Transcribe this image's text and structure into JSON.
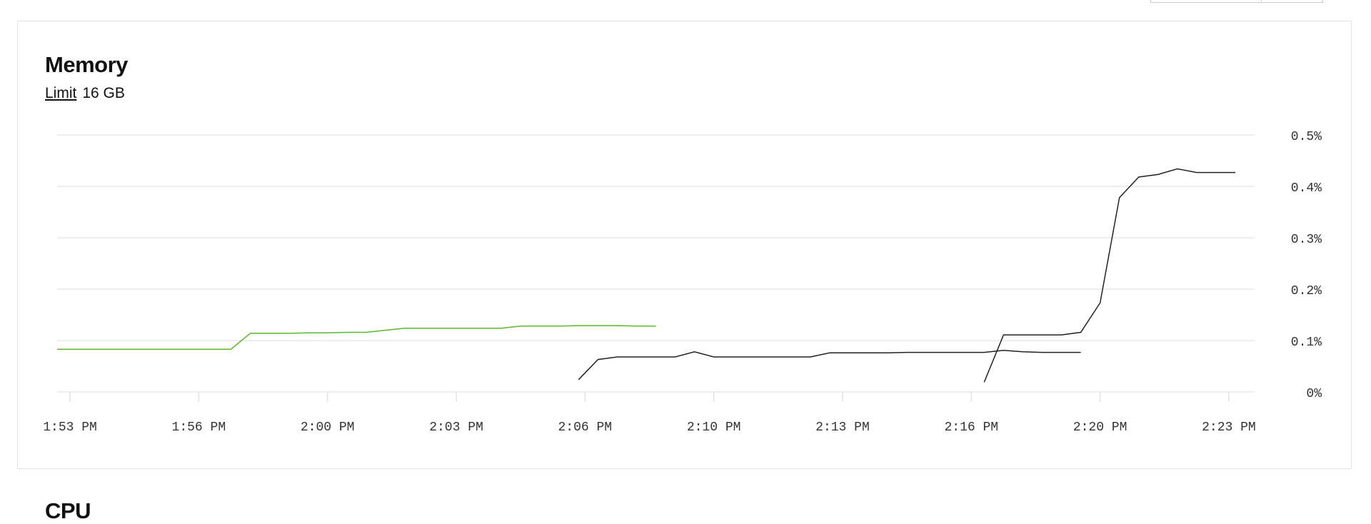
{
  "panel": {
    "title": "Memory",
    "limit_label": "Limit",
    "limit_value": "16 GB"
  },
  "next_panel": {
    "title": "CPU"
  },
  "chart_data": {
    "type": "line",
    "x": [
      "1:53:00 PM",
      "1:53:30 PM",
      "1:54:00 PM",
      "1:54:30 PM",
      "1:55:00 PM",
      "1:55:30 PM",
      "1:56:00 PM",
      "1:56:30 PM",
      "1:57:00 PM",
      "1:57:30 PM",
      "1:58:00 PM",
      "1:58:30 PM",
      "1:59:00 PM",
      "1:59:30 PM",
      "2:00:00 PM",
      "2:00:30 PM",
      "2:01:00 PM",
      "2:01:30 PM",
      "2:02:00 PM",
      "2:02:30 PM",
      "2:03:00 PM",
      "2:03:30 PM",
      "2:04:00 PM",
      "2:04:30 PM",
      "2:05:00 PM",
      "2:05:30 PM",
      "2:06:00 PM",
      "2:06:30 PM",
      "2:07:00 PM",
      "2:07:30 PM",
      "2:08:00 PM",
      "2:08:30 PM",
      "2:09:00 PM",
      "2:09:30 PM",
      "2:10:00 PM",
      "2:10:30 PM",
      "2:11:00 PM",
      "2:11:30 PM",
      "2:12:00 PM",
      "2:12:30 PM",
      "2:13:00 PM",
      "2:13:30 PM",
      "2:14:00 PM",
      "2:14:30 PM",
      "2:15:00 PM",
      "2:15:30 PM",
      "2:16:00 PM",
      "2:16:30 PM",
      "2:17:00 PM",
      "2:17:30 PM",
      "2:18:00 PM",
      "2:18:30 PM",
      "2:19:00 PM",
      "2:19:30 PM",
      "2:20:00 PM",
      "2:20:30 PM",
      "2:21:00 PM",
      "2:21:30 PM",
      "2:22:00 PM",
      "2:22:30 PM",
      "2:23:00 PM",
      "2:23:30 PM"
    ],
    "series": [
      {
        "color": "#5cb82e",
        "values": [
          0.083,
          0.083,
          0.083,
          0.083,
          0.083,
          0.083,
          0.083,
          0.083,
          0.083,
          0.083,
          0.114,
          0.114,
          0.114,
          0.115,
          0.115,
          0.116,
          0.116,
          0.12,
          0.124,
          0.124,
          0.124,
          0.124,
          0.124,
          0.124,
          0.128,
          0.128,
          0.128,
          0.129,
          0.129,
          0.129,
          0.128,
          0.128,
          null,
          null,
          null,
          null,
          null,
          null,
          null,
          null,
          null,
          null,
          null,
          null,
          null,
          null,
          null,
          null,
          null,
          null,
          null,
          null,
          null,
          null,
          null,
          null,
          null,
          null,
          null,
          null,
          null,
          null
        ]
      },
      {
        "color": "#222222",
        "values": [
          null,
          null,
          null,
          null,
          null,
          null,
          null,
          null,
          null,
          null,
          null,
          null,
          null,
          null,
          null,
          null,
          null,
          null,
          null,
          null,
          null,
          null,
          null,
          null,
          null,
          null,
          null,
          0.024,
          0.063,
          0.068,
          0.068,
          0.068,
          0.068,
          0.078,
          0.068,
          0.068,
          0.068,
          0.068,
          0.068,
          0.068,
          0.076,
          0.076,
          0.076,
          0.076,
          0.077,
          0.077,
          0.077,
          0.077,
          0.077,
          0.081,
          0.078,
          0.077,
          0.077,
          0.077,
          null,
          null,
          null,
          null,
          null,
          null,
          null,
          null
        ]
      },
      {
        "color": "#222222",
        "values": [
          null,
          null,
          null,
          null,
          null,
          null,
          null,
          null,
          null,
          null,
          null,
          null,
          null,
          null,
          null,
          null,
          null,
          null,
          null,
          null,
          null,
          null,
          null,
          null,
          null,
          null,
          null,
          null,
          null,
          null,
          null,
          null,
          null,
          null,
          null,
          null,
          null,
          null,
          null,
          null,
          null,
          null,
          null,
          null,
          null,
          null,
          null,
          null,
          0.019,
          0.111,
          0.111,
          0.111,
          0.111,
          0.116,
          0.173,
          0.378,
          0.418,
          0.423,
          0.434,
          0.427,
          0.427,
          0.427
        ]
      }
    ],
    "xlim": [
      "1:53:00 PM",
      "2:24:00 PM"
    ],
    "xticks": [
      {
        "value": "1:53:20 PM",
        "label": "1:53 PM"
      },
      {
        "value": "1:56:40 PM",
        "label": "1:56 PM"
      },
      {
        "value": "2:00:00 PM",
        "label": "2:00 PM"
      },
      {
        "value": "2:03:20 PM",
        "label": "2:03 PM"
      },
      {
        "value": "2:06:40 PM",
        "label": "2:06 PM"
      },
      {
        "value": "2:10:00 PM",
        "label": "2:10 PM"
      },
      {
        "value": "2:13:20 PM",
        "label": "2:13 PM"
      },
      {
        "value": "2:16:40 PM",
        "label": "2:16 PM"
      },
      {
        "value": "2:20:00 PM",
        "label": "2:20 PM"
      },
      {
        "value": "2:23:20 PM",
        "label": "2:23 PM"
      }
    ],
    "ylim": [
      0,
      0.5
    ],
    "yticks": [
      {
        "value": 0,
        "label": "0%"
      },
      {
        "value": 0.1,
        "label": "0.1%"
      },
      {
        "value": 0.2,
        "label": "0.2%"
      },
      {
        "value": 0.3,
        "label": "0.3%"
      },
      {
        "value": 0.4,
        "label": "0.4%"
      },
      {
        "value": 0.5,
        "label": "0.5%"
      }
    ],
    "grid": true
  }
}
